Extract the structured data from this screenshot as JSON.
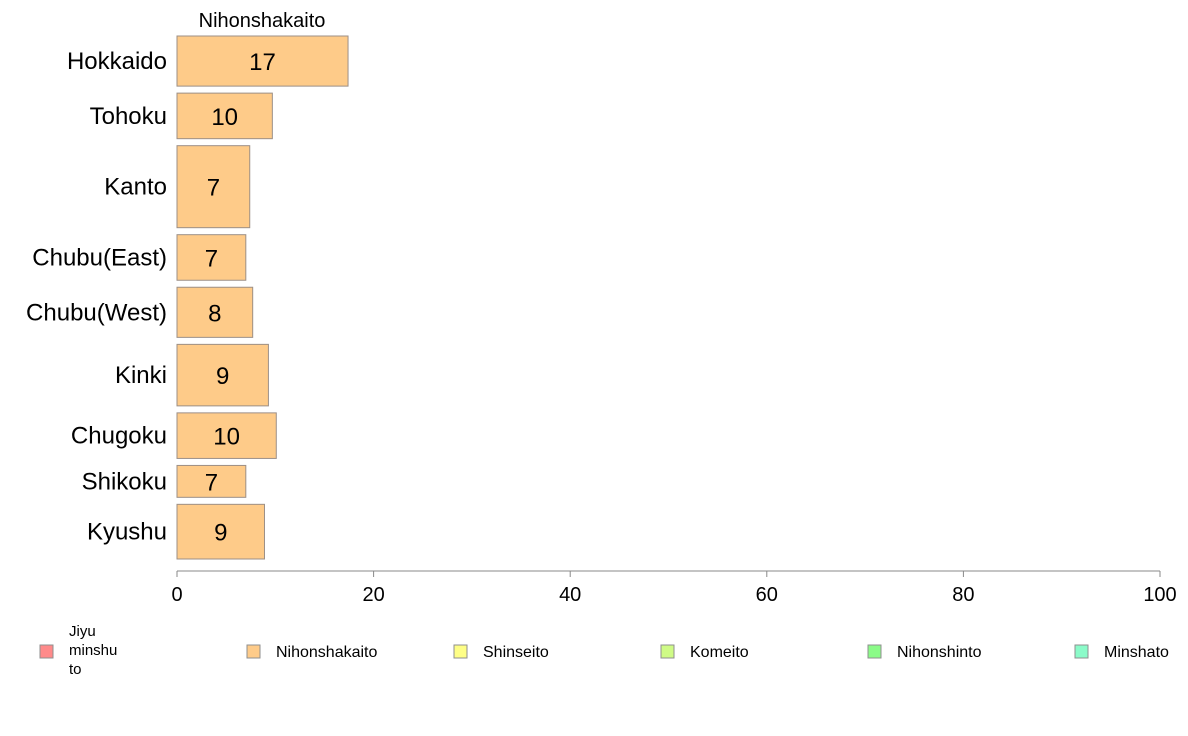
{
  "chart_data": {
    "type": "bar",
    "orientation": "horizontal",
    "title": "Nihonshakaito",
    "categories": [
      "Hokkaido",
      "Tohoku",
      "Kanto",
      "Chubu(East)",
      "Chubu(West)",
      "Kinki",
      "Chugoku",
      "Shikoku",
      "Kyushu"
    ],
    "series": [
      {
        "name": "Nihonshakaito",
        "values": [
          17,
          10,
          7,
          7,
          8,
          9,
          10,
          7,
          9
        ],
        "data_labels": [
          "17",
          "10",
          "7",
          "7",
          "8",
          "9",
          "10",
          "7",
          "9"
        ],
        "bar_values": [
          17.4,
          9.7,
          7.4,
          7.0,
          7.7,
          9.3,
          10.1,
          7.0,
          8.9
        ],
        "color": "#FECB89",
        "edge_color": "#9C8F86"
      }
    ],
    "category_weights": [
      1.1,
      1.0,
      1.8,
      1.0,
      1.1,
      1.35,
      1.0,
      0.7,
      1.2
    ],
    "xlim": [
      0,
      100
    ],
    "x_ticks": [
      0,
      20,
      40,
      60,
      80,
      100
    ],
    "xlabel": "",
    "ylabel": "",
    "grid": false,
    "axis_color": "#888888",
    "legend": {
      "placement": "bottom",
      "items": [
        {
          "label": "Jiyu\nminshu\nto",
          "color": "#FF8A8A"
        },
        {
          "label": "Nihonshakaito",
          "color": "#FECB89"
        },
        {
          "label": "Shinseito",
          "color": "#FEFE86"
        },
        {
          "label": "Komeito",
          "color": "#CFFB86"
        },
        {
          "label": "Nihonshinto",
          "color": "#8BFB88"
        },
        {
          "label": "Minshato",
          "color": "#8BFBC9"
        }
      ]
    }
  }
}
